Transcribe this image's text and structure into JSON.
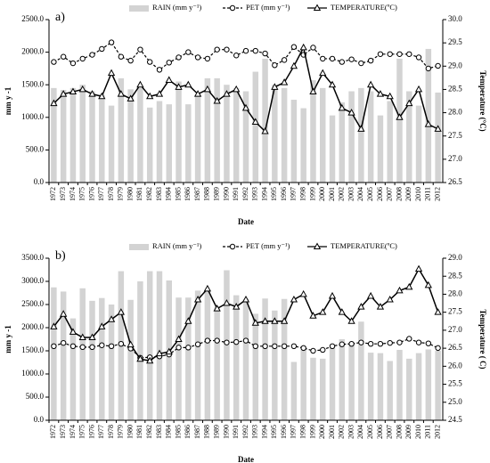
{
  "chart_data": [
    {
      "type": "bar_line",
      "panel_label": "a)",
      "x_label": "Date",
      "y_label": "mm y -1",
      "y2_label": "Temperature (°C)",
      "categories": [
        "1972",
        "1973",
        "1974",
        "1975",
        "1976",
        "1977",
        "1978",
        "1979",
        "1980",
        "1981",
        "1982",
        "1983",
        "1984",
        "1985",
        "1986",
        "1987",
        "1988",
        "1989",
        "1990",
        "1991",
        "1992",
        "1993",
        "1994",
        "1995",
        "1996",
        "1997",
        "1998",
        "1999",
        "2000",
        "2001",
        "2002",
        "2003",
        "2004",
        "2005",
        "2006",
        "2007",
        "2008",
        "2009",
        "2010",
        "2011",
        "2012"
      ],
      "ylim": [
        0,
        2500
      ],
      "yticks": [
        {
          "value": 0,
          "label": "0.0"
        },
        {
          "value": 500,
          "label": "500.0"
        },
        {
          "value": 1000,
          "label": "1000.0"
        },
        {
          "value": 1500,
          "label": "1500.0"
        },
        {
          "value": 2000,
          "label": "2000.0"
        },
        {
          "value": 2500,
          "label": "2500.0"
        }
      ],
      "y2lim": [
        26.5,
        30
      ],
      "y2ticks": [
        26.5,
        {
          "value": 27,
          "label": "27.0"
        },
        27.5,
        {
          "value": 28,
          "label": "28.0"
        },
        28.5,
        {
          "value": 29,
          "label": "29.0"
        },
        29.5,
        {
          "value": 30,
          "label": "30.0"
        }
      ],
      "series": [
        {
          "name": "RAIN (mm y⁻¹)",
          "kind": "bar",
          "color": "#d3d3d3",
          "values": [
            1450,
            1420,
            1450,
            1500,
            1400,
            1350,
            1180,
            1600,
            1430,
            1450,
            1150,
            1250,
            1200,
            1550,
            1200,
            1350,
            1600,
            1600,
            1500,
            1450,
            1400,
            1700,
            1900,
            1500,
            1450,
            1270,
            1140,
            1570,
            1450,
            1030,
            1230,
            1400,
            1450,
            1400,
            1030,
            1250,
            1900,
            1400,
            1180,
            2050,
            1380
          ]
        },
        {
          "name": "PET (mm y⁻¹)",
          "kind": "line",
          "dash": true,
          "marker": "circle",
          "color": "#000000",
          "values": [
            1850,
            1930,
            1830,
            1900,
            1960,
            2050,
            2150,
            1930,
            1870,
            2040,
            1850,
            1730,
            1840,
            1920,
            2000,
            1920,
            1900,
            2040,
            2040,
            1950,
            2020,
            2020,
            1980,
            1800,
            1880,
            2080,
            1960,
            2070,
            1900,
            1900,
            1850,
            1890,
            1830,
            1870,
            1970,
            1970,
            1970,
            1970,
            1920,
            1750,
            1790
          ]
        },
        {
          "name": "TEMPERATURE(ºC)",
          "kind": "line",
          "dash": false,
          "marker": "triangle",
          "color": "#000000",
          "axis": "y2",
          "values": [
            28.2,
            28.4,
            28.45,
            28.5,
            28.4,
            28.35,
            28.85,
            28.4,
            28.3,
            28.6,
            28.35,
            28.4,
            28.7,
            28.55,
            28.6,
            28.4,
            28.5,
            28.25,
            28.4,
            28.5,
            28.1,
            27.8,
            27.6,
            28.55,
            28.65,
            29.0,
            29.4,
            28.45,
            28.85,
            28.6,
            28.1,
            28.0,
            27.65,
            28.6,
            28.4,
            28.35,
            27.9,
            28.2,
            28.5,
            27.75,
            27.65
          ]
        }
      ]
    },
    {
      "type": "bar_line",
      "panel_label": "b)",
      "x_label": "Date",
      "y_label": "mm y -1",
      "y2_label": "Temperature ( C)",
      "categories": [
        "1972",
        "1973",
        "1974",
        "1975",
        "1976",
        "1977",
        "1978",
        "1979",
        "1980",
        "1981",
        "1982",
        "1983",
        "1984",
        "1985",
        "1986",
        "1987",
        "1988",
        "1989",
        "1990",
        "1991",
        "1992",
        "1993",
        "1994",
        "1995",
        "1996",
        "1997",
        "1998",
        "1999",
        "2000",
        "2001",
        "2002",
        "2003",
        "2004",
        "2005",
        "2006",
        "2007",
        "2008",
        "2009",
        "2010",
        "2011",
        "2012"
      ],
      "ylim": [
        0,
        3500
      ],
      "yticks": [
        {
          "value": 0,
          "label": "0.0"
        },
        {
          "value": 500,
          "label": "500.0"
        },
        {
          "value": 1000,
          "label": "1000.0"
        },
        {
          "value": 1500,
          "label": "1500.0"
        },
        {
          "value": 2000,
          "label": "2000.0"
        },
        {
          "value": 2500,
          "label": "2500.0"
        },
        {
          "value": 3000,
          "label": "3000.0"
        },
        {
          "value": 3500,
          "label": "3500.0"
        }
      ],
      "y2lim": [
        24.5,
        29
      ],
      "y2ticks": [
        24.5,
        {
          "value": 25,
          "label": "25.0"
        },
        25.5,
        {
          "value": 26,
          "label": "26.0"
        },
        26.5,
        {
          "value": 27,
          "label": "27.0"
        },
        27.5,
        {
          "value": 28,
          "label": "28.0"
        },
        28.5,
        {
          "value": 29,
          "label": "29.0"
        }
      ],
      "series": [
        {
          "name": "RAIN (mm y⁻¹)",
          "kind": "bar",
          "color": "#d3d3d3",
          "values": [
            2870,
            2780,
            2200,
            2850,
            2580,
            2640,
            2500,
            3220,
            2600,
            3000,
            3220,
            3220,
            3020,
            2650,
            2650,
            2800,
            2800,
            2450,
            3240,
            2700,
            2620,
            2300,
            2630,
            2370,
            2620,
            1260,
            1600,
            1350,
            1330,
            1580,
            1750,
            1660,
            2130,
            1460,
            1450,
            1280,
            1520,
            1330,
            1450,
            1530,
            1500
          ]
        },
        {
          "name": "PET (mm y⁻¹)",
          "kind": "line",
          "dash": true,
          "marker": "circle",
          "color": "#000000",
          "values": [
            1600,
            1670,
            1600,
            1580,
            1580,
            1620,
            1600,
            1650,
            1550,
            1350,
            1360,
            1380,
            1420,
            1570,
            1570,
            1640,
            1720,
            1720,
            1680,
            1690,
            1720,
            1600,
            1600,
            1600,
            1600,
            1600,
            1560,
            1500,
            1520,
            1600,
            1640,
            1650,
            1680,
            1650,
            1650,
            1670,
            1680,
            1760,
            1680,
            1660,
            1560
          ]
        },
        {
          "name": "TEMPERATURE(ºC)",
          "kind": "line",
          "dash": false,
          "marker": "triangle",
          "color": "#000000",
          "axis": "y2",
          "values": [
            27.1,
            27.45,
            26.95,
            26.8,
            26.8,
            27.1,
            27.3,
            27.5,
            26.6,
            26.2,
            26.15,
            26.35,
            26.4,
            26.75,
            27.25,
            27.85,
            28.15,
            27.6,
            27.75,
            27.65,
            27.85,
            27.2,
            27.25,
            27.25,
            27.25,
            27.85,
            28.0,
            27.4,
            27.5,
            27.95,
            27.5,
            27.25,
            27.65,
            27.95,
            27.65,
            27.85,
            28.1,
            28.2,
            28.7,
            28.25,
            27.5
          ]
        }
      ]
    }
  ]
}
